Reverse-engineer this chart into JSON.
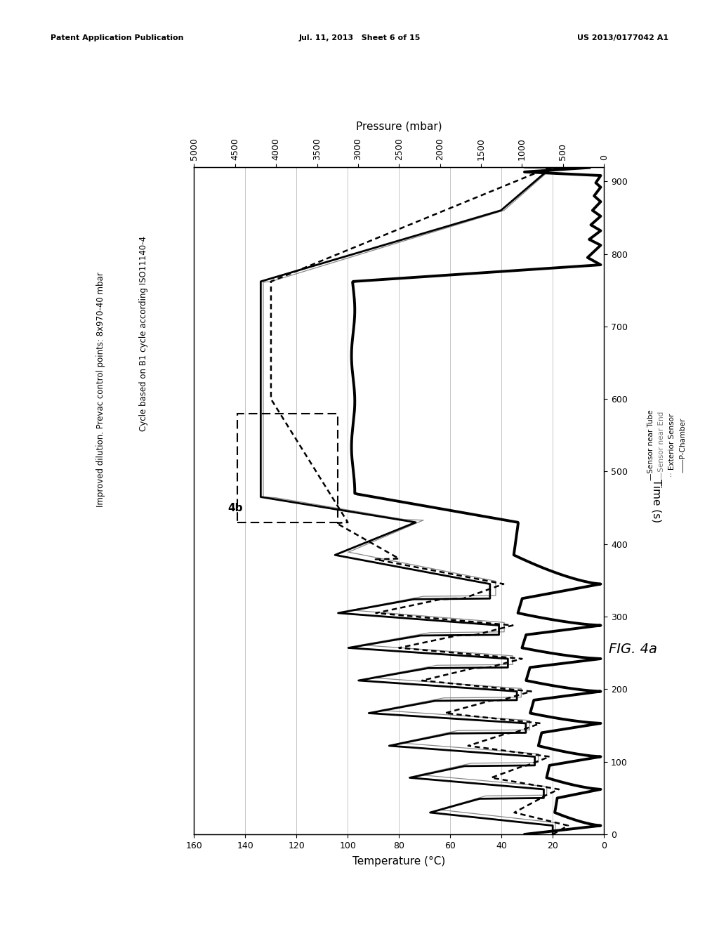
{
  "header_left": "Patent Application Publication",
  "header_mid": "Jul. 11, 2013   Sheet 6 of 15",
  "header_right": "US 2013/0177042 A1",
  "annotation_text1": "Cycle based on B1 cycle according ISO11140-4",
  "annotation_text2": "Improved dilution. Prevac control points: 8x970-40 mbar",
  "annotation_4b": "4b",
  "fig_label": "FIG. 4a",
  "xlabel": "Temperature (°C)",
  "time_label": "Time (s)",
  "pressure_label": "Pressure (mbar)",
  "legend_entries": [
    "Sensor near Tube",
    "Sensor near End",
    "Exterior Sensor",
    "P-Chamber"
  ],
  "T_min": 0,
  "T_max": 160,
  "t_min": 0,
  "t_max": 920,
  "P_min": 0,
  "P_max": 5000,
  "T_ticks": [
    0,
    20,
    40,
    60,
    80,
    100,
    120,
    140,
    160
  ],
  "t_ticks": [
    0,
    100,
    200,
    300,
    400,
    500,
    600,
    700,
    800,
    900
  ],
  "P_ticks": [
    0,
    500,
    1000,
    1500,
    2000,
    2500,
    3000,
    3500,
    4000,
    4500,
    5000
  ],
  "bg_color": "#ffffff",
  "grid_color": "#bbbbbb"
}
